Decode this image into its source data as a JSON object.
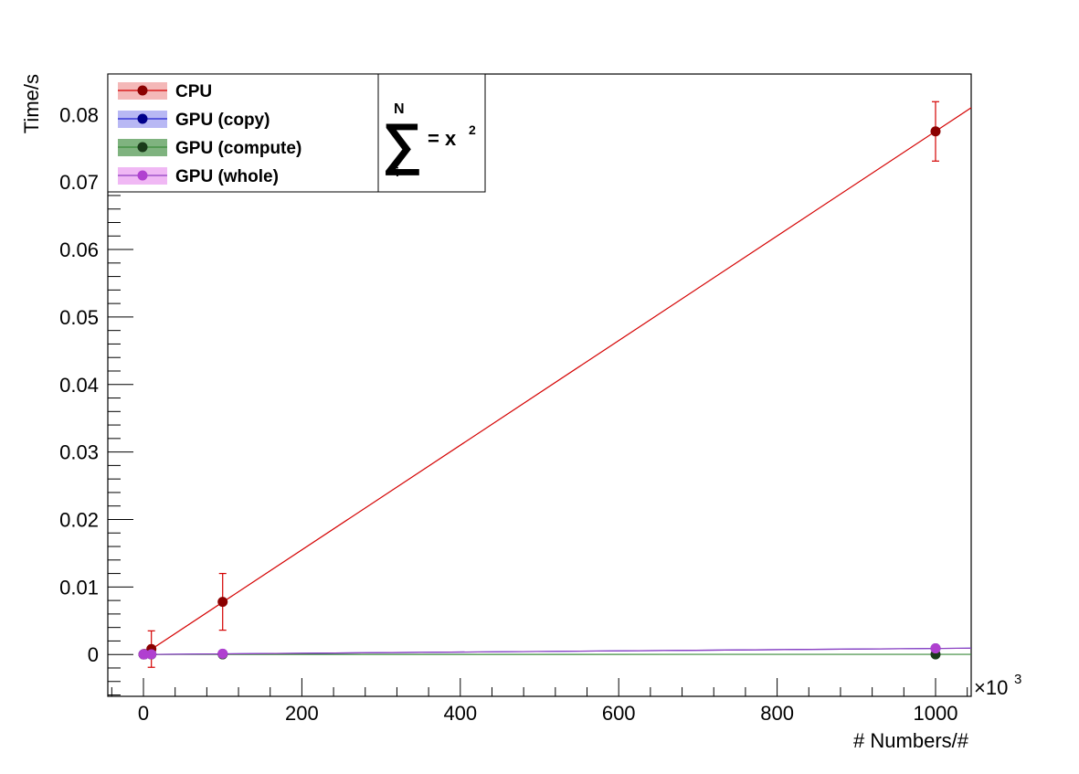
{
  "chart_data": {
    "type": "scatter",
    "title": "",
    "xlabel": "# Numbers/#",
    "ylabel": "Time/s",
    "x_multiplier_label": "×10",
    "x_multiplier_exponent": "3",
    "xlim": [
      -45,
      1045
    ],
    "ylim": [
      -0.0062,
      0.086
    ],
    "x_ticks": [
      0,
      200,
      400,
      600,
      800,
      1000
    ],
    "y_ticks": [
      0,
      0.01,
      0.02,
      0.03,
      0.04,
      0.05,
      0.06,
      0.07,
      0.08
    ],
    "grid": false,
    "legend_position": "top-left",
    "annotation": {
      "sum_symbol": "∑",
      "upper": "N",
      "lower": "i",
      "rhs": "= x",
      "rhs_exponent": "2"
    },
    "series": [
      {
        "name": "CPU",
        "marker_color": "#8b0000",
        "line_color": "#d40000",
        "band_color": "#f4b8b8",
        "x": [
          0.1,
          1,
          10,
          100,
          1000
        ],
        "y": [
          1e-05,
          8e-05,
          0.0008,
          0.0078,
          0.0775
        ],
        "yerr": [
          0.0,
          0.0,
          0.0027,
          0.0042,
          0.0044
        ],
        "fit": [
          [
            0,
            0
          ],
          [
            1045,
            0.081
          ]
        ]
      },
      {
        "name": "GPU (copy)",
        "marker_color": "#00008b",
        "line_color": "#2020d0",
        "band_color": "#b8b8f4",
        "x": [
          0.1,
          1,
          10,
          100,
          1000
        ],
        "y": [
          2e-05,
          2e-05,
          3e-05,
          0.0001,
          0.0009
        ],
        "yerr": [
          0,
          0,
          0,
          0,
          0
        ],
        "fit": [
          [
            0,
            0
          ],
          [
            1045,
            0.00093
          ]
        ]
      },
      {
        "name": "GPU (compute)",
        "marker_color": "#1a3a1a",
        "line_color": "#3a8a3a",
        "band_color": "#7fb37f",
        "x": [
          0.1,
          1,
          10,
          100,
          1000
        ],
        "y": [
          1e-05,
          1e-05,
          1e-05,
          2e-05,
          1e-05
        ],
        "yerr": [
          0,
          0,
          0,
          0,
          0
        ],
        "fit": [
          [
            0,
            1e-05
          ],
          [
            1045,
            2e-05
          ]
        ]
      },
      {
        "name": "GPU (whole)",
        "marker_color": "#b040d0",
        "line_color": "#9040c0",
        "band_color": "#f0b8f4",
        "x": [
          0.1,
          1,
          10,
          100,
          1000
        ],
        "y": [
          2e-05,
          2e-05,
          3e-05,
          0.00012,
          0.0009
        ],
        "yerr": [
          0,
          0,
          0,
          0,
          0
        ],
        "fit": [
          [
            0,
            0
          ],
          [
            1045,
            0.00093
          ]
        ]
      }
    ]
  }
}
